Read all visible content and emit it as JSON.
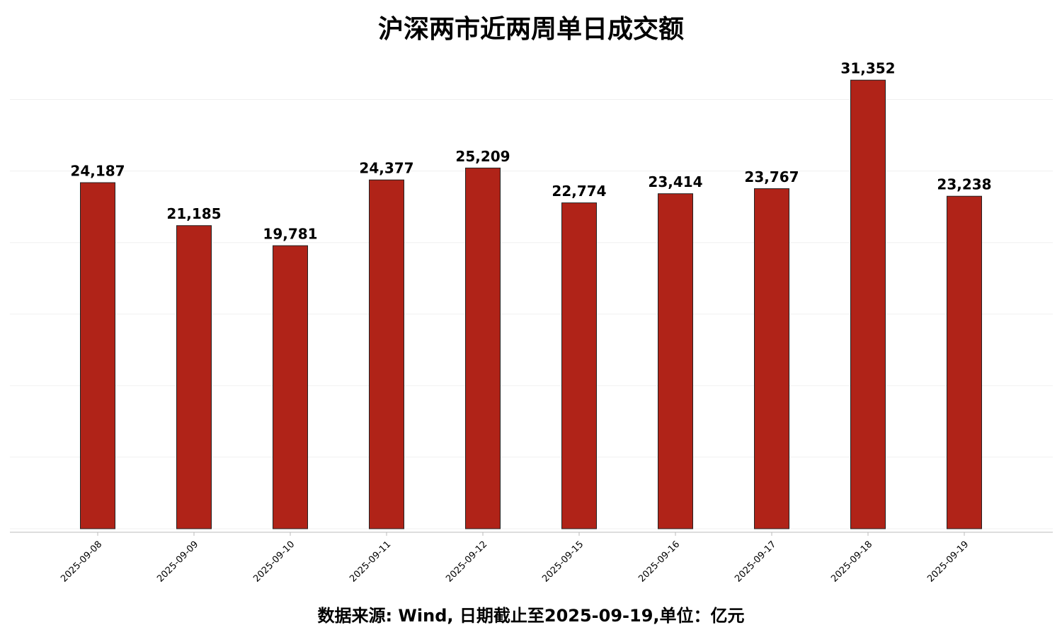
{
  "chart_data": {
    "type": "bar",
    "title": "沪深两市近两周单日成交额",
    "categories": [
      "2025-09-08",
      "2025-09-09",
      "2025-09-10",
      "2025-09-11",
      "2025-09-12",
      "2025-09-15",
      "2025-09-16",
      "2025-09-17",
      "2025-09-18",
      "2025-09-19"
    ],
    "values": [
      24187,
      21185,
      19781,
      24377,
      25209,
      22774,
      23414,
      23767,
      31352,
      23238
    ],
    "value_labels": [
      "24,187",
      "21,185",
      "19,781",
      "24,377",
      "25,209",
      "22,774",
      "23,414",
      "23,767",
      "31,352",
      "23,238"
    ],
    "color": "#b02318",
    "ylim": [
      0,
      32500
    ],
    "yticks": [
      0,
      5000,
      10000,
      15000,
      20000,
      25000,
      30000
    ],
    "grid": true,
    "caption": "数据来源: Wind, 日期截止至2025-09-19,单位：亿元"
  }
}
